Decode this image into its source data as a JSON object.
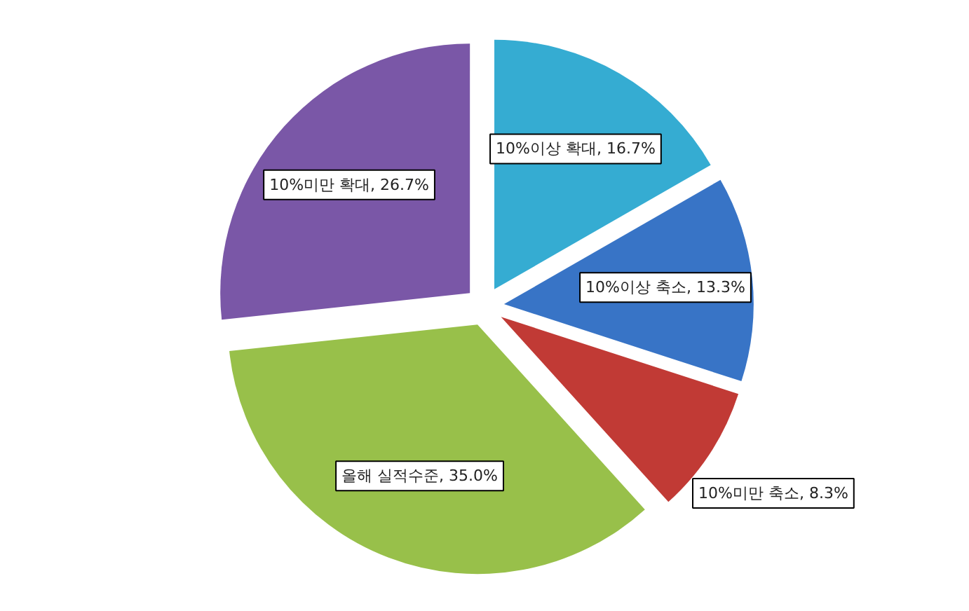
{
  "chart_data": {
    "type": "pie",
    "categories": [
      "10%이상 확대",
      "10%이상 축소",
      "10%미만 축소",
      "올해 실적수준",
      "10%미만 확대"
    ],
    "values": [
      16.7,
      13.3,
      8.3,
      35.0,
      26.7
    ],
    "colors": [
      "#35acd2",
      "#3874c6",
      "#c13a35",
      "#98c04a",
      "#7a57a7"
    ],
    "value_labels": [
      "16.7%",
      "13.3%",
      "8.3%",
      "35.0%",
      "26.7%"
    ]
  }
}
